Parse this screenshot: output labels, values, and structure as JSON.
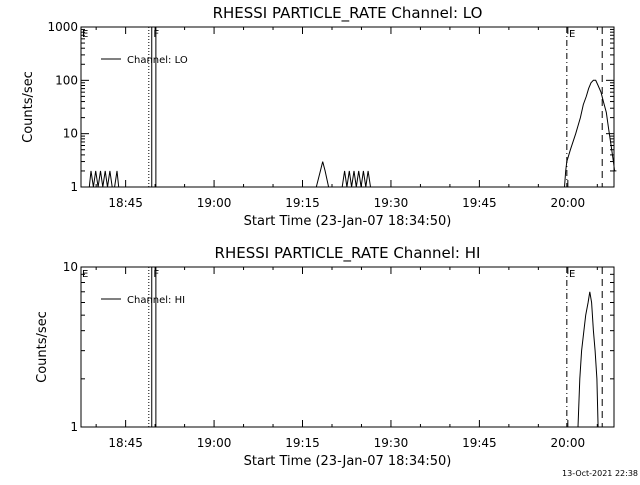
{
  "footer": {
    "timestamp": "13-Oct-2021 22:38"
  },
  "chart_data": [
    {
      "type": "line",
      "title": "RHESSI PARTICLE_RATE Channel: LO",
      "xlabel": "Start Time (23-Jan-07 18:34:50)",
      "ylabel": "Counts/sec",
      "yscale": "log",
      "ylim": [
        1,
        1000
      ],
      "xlim": [
        2.6,
        93.0
      ],
      "x_unit": "minutes after 18:34:50",
      "xticks": [
        {
          "x": 10.17,
          "label": "18:45"
        },
        {
          "x": 25.17,
          "label": "19:00"
        },
        {
          "x": 40.17,
          "label": "19:15"
        },
        {
          "x": 55.17,
          "label": "19:30"
        },
        {
          "x": 70.17,
          "label": "19:45"
        },
        {
          "x": 85.17,
          "label": "20:00"
        }
      ],
      "yticks": [
        {
          "y": 1,
          "label": "1"
        },
        {
          "y": 10,
          "label": "10"
        },
        {
          "y": 100,
          "label": "100"
        },
        {
          "y": 1000,
          "label": "1000"
        }
      ],
      "legend": {
        "label": "Channel: LO",
        "position": "top-left"
      },
      "markers": [
        {
          "label": "E",
          "x": 2.6
        },
        {
          "label": "F",
          "x": 14.7
        },
        {
          "label": "E",
          "x": 85.2
        }
      ],
      "lines": [
        {
          "x": 14.1,
          "style": "dotted"
        },
        {
          "x": 14.6,
          "style": "solid"
        },
        {
          "x": 15.3,
          "style": "solid"
        },
        {
          "x": 85.0,
          "style": "dashdot"
        },
        {
          "x": 91.0,
          "style": "dashed"
        },
        {
          "x": 93.0,
          "style": "dotted"
        }
      ],
      "shaded_from": 93.0,
      "series": [
        {
          "values": [
            [
              4.0,
              1
            ],
            [
              4.3,
              2
            ],
            [
              4.7,
              1
            ],
            [
              5.1,
              2
            ],
            [
              5.5,
              1
            ],
            [
              5.9,
              2
            ],
            [
              6.3,
              1
            ],
            [
              6.7,
              2
            ],
            [
              7.1,
              1
            ],
            [
              7.5,
              2
            ],
            [
              7.9,
              1
            ],
            [
              8.3,
              1
            ],
            [
              8.7,
              2
            ],
            [
              9.0,
              1
            ],
            [
              42.5,
              1
            ],
            [
              43.2,
              2
            ],
            [
              43.6,
              3
            ],
            [
              44.0,
              2
            ],
            [
              44.6,
              1
            ],
            [
              46.9,
              1
            ],
            [
              47.3,
              2
            ],
            [
              47.7,
              1
            ],
            [
              48.1,
              2
            ],
            [
              48.5,
              1
            ],
            [
              48.9,
              2
            ],
            [
              49.3,
              1
            ],
            [
              49.7,
              2
            ],
            [
              50.1,
              1
            ],
            [
              50.5,
              2
            ],
            [
              50.9,
              1
            ],
            [
              51.3,
              2
            ],
            [
              51.7,
              1
            ],
            [
              84.6,
              1
            ],
            [
              84.8,
              2
            ],
            [
              85.0,
              3
            ],
            [
              85.6,
              5
            ],
            [
              86.5,
              10
            ],
            [
              87.3,
              20
            ],
            [
              87.8,
              35
            ],
            [
              88.3,
              50
            ],
            [
              88.7,
              70
            ],
            [
              89.1,
              90
            ],
            [
              89.5,
              100
            ],
            [
              89.9,
              100
            ],
            [
              90.3,
              80
            ],
            [
              90.8,
              60
            ],
            [
              91.2,
              40
            ],
            [
              91.7,
              25
            ],
            [
              92.1,
              12
            ],
            [
              92.5,
              6
            ],
            [
              92.9,
              3
            ],
            [
              93.1,
              2
            ],
            [
              93.4,
              2
            ]
          ]
        }
      ]
    },
    {
      "type": "line",
      "title": "RHESSI PARTICLE_RATE Channel: HI",
      "xlabel": "Start Time (23-Jan-07 18:34:50)",
      "ylabel": "Counts/sec",
      "yscale": "log",
      "ylim": [
        1,
        10
      ],
      "xlim": [
        2.6,
        93.0
      ],
      "x_unit": "minutes after 18:34:50",
      "xticks": [
        {
          "x": 10.17,
          "label": "18:45"
        },
        {
          "x": 25.17,
          "label": "19:00"
        },
        {
          "x": 40.17,
          "label": "19:15"
        },
        {
          "x": 55.17,
          "label": "19:30"
        },
        {
          "x": 70.17,
          "label": "19:45"
        },
        {
          "x": 85.17,
          "label": "20:00"
        }
      ],
      "yticks": [
        {
          "y": 1,
          "label": "1"
        },
        {
          "y": 10,
          "label": "10"
        }
      ],
      "legend": {
        "label": "Channel: HI",
        "position": "top-left"
      },
      "markers": [
        {
          "label": "E",
          "x": 2.6
        },
        {
          "label": "F",
          "x": 14.7
        },
        {
          "label": "E",
          "x": 85.2
        }
      ],
      "lines": [
        {
          "x": 14.1,
          "style": "dotted"
        },
        {
          "x": 14.6,
          "style": "solid"
        },
        {
          "x": 15.3,
          "style": "solid"
        },
        {
          "x": 85.0,
          "style": "dashdot"
        },
        {
          "x": 91.0,
          "style": "dashed"
        },
        {
          "x": 93.0,
          "style": "dotted"
        }
      ],
      "shaded_from": 93.0,
      "series": [
        {
          "values": [
            [
              86.9,
              1
            ],
            [
              87.2,
              2
            ],
            [
              87.5,
              3
            ],
            [
              87.9,
              4
            ],
            [
              88.2,
              5
            ],
            [
              88.6,
              6
            ],
            [
              88.9,
              7
            ],
            [
              89.2,
              6
            ],
            [
              89.5,
              4
            ],
            [
              89.8,
              3
            ],
            [
              90.1,
              2
            ],
            [
              90.3,
              1
            ]
          ]
        }
      ]
    }
  ]
}
